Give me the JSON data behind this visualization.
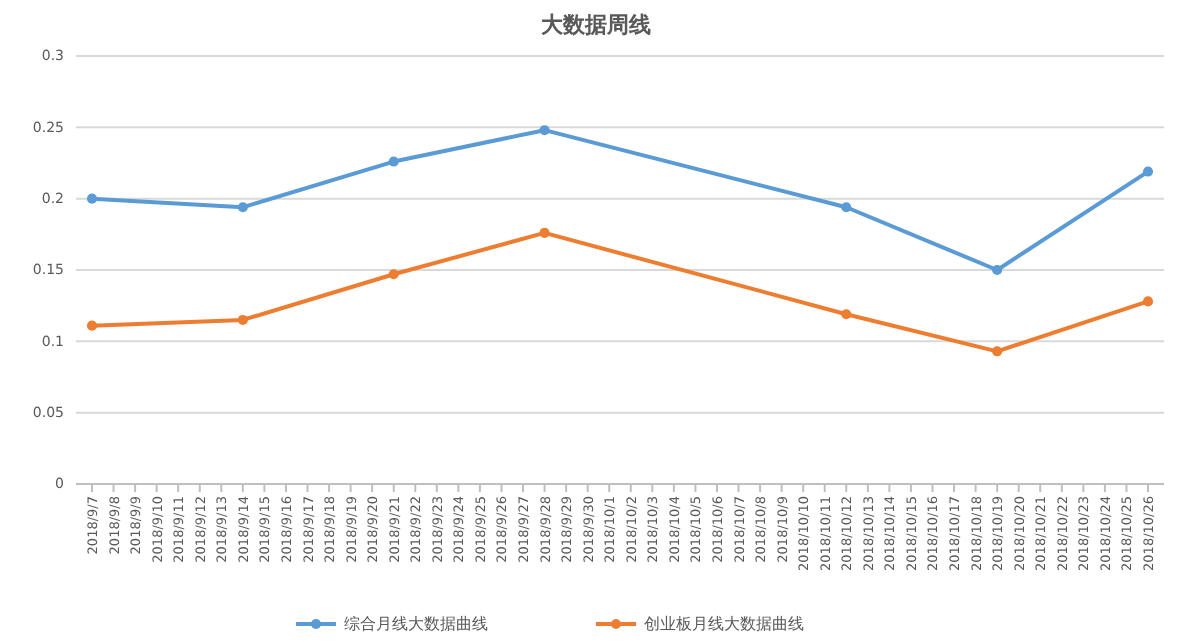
{
  "chart_data": {
    "type": "line",
    "title": "大数据周线",
    "categories": [
      "2018/9/7",
      "2018/9/8",
      "2018/9/9",
      "2018/9/10",
      "2018/9/11",
      "2018/9/12",
      "2018/9/13",
      "2018/9/14",
      "2018/9/15",
      "2018/9/16",
      "2018/9/17",
      "2018/9/18",
      "2018/9/19",
      "2018/9/20",
      "2018/9/21",
      "2018/9/22",
      "2018/9/23",
      "2018/9/24",
      "2018/9/25",
      "2018/9/26",
      "2018/9/27",
      "2018/9/28",
      "2018/9/29",
      "2018/9/30",
      "2018/10/1",
      "2018/10/2",
      "2018/10/3",
      "2018/10/4",
      "2018/10/5",
      "2018/10/6",
      "2018/10/7",
      "2018/10/8",
      "2018/10/9",
      "2018/10/10",
      "2018/10/11",
      "2018/10/12",
      "2018/10/13",
      "2018/10/14",
      "2018/10/15",
      "2018/10/16",
      "2018/10/17",
      "2018/10/18",
      "2018/10/19",
      "2018/10/20",
      "2018/10/21",
      "2018/10/22",
      "2018/10/23",
      "2018/10/24",
      "2018/10/25",
      "2018/10/26"
    ],
    "series": [
      {
        "name": "综合月线大数据曲线",
        "color": "#5b9bd5",
        "values": [
          0.2,
          null,
          null,
          null,
          null,
          null,
          null,
          0.194,
          null,
          null,
          null,
          null,
          null,
          null,
          0.226,
          null,
          null,
          null,
          null,
          null,
          null,
          0.248,
          null,
          null,
          null,
          null,
          null,
          null,
          null,
          null,
          null,
          null,
          null,
          null,
          null,
          0.194,
          null,
          null,
          null,
          null,
          null,
          null,
          0.15,
          null,
          null,
          null,
          null,
          null,
          null,
          0.219
        ]
      },
      {
        "name": "创业板月线大数据曲线",
        "color": "#ed7d31",
        "values": [
          0.111,
          null,
          null,
          null,
          null,
          null,
          null,
          0.115,
          null,
          null,
          null,
          null,
          null,
          null,
          0.147,
          null,
          null,
          null,
          null,
          null,
          null,
          0.176,
          null,
          null,
          null,
          null,
          null,
          null,
          null,
          null,
          null,
          null,
          null,
          null,
          null,
          0.119,
          null,
          null,
          null,
          null,
          null,
          null,
          0.093,
          null,
          null,
          null,
          null,
          null,
          null,
          0.128
        ]
      }
    ],
    "ylim": [
      0,
      0.3
    ],
    "yticks": [
      0,
      0.05,
      0.1,
      0.15,
      0.2,
      0.25,
      0.3
    ],
    "grid": "y",
    "legend": "bottom",
    "marker": "circle",
    "line_style": "solid"
  }
}
